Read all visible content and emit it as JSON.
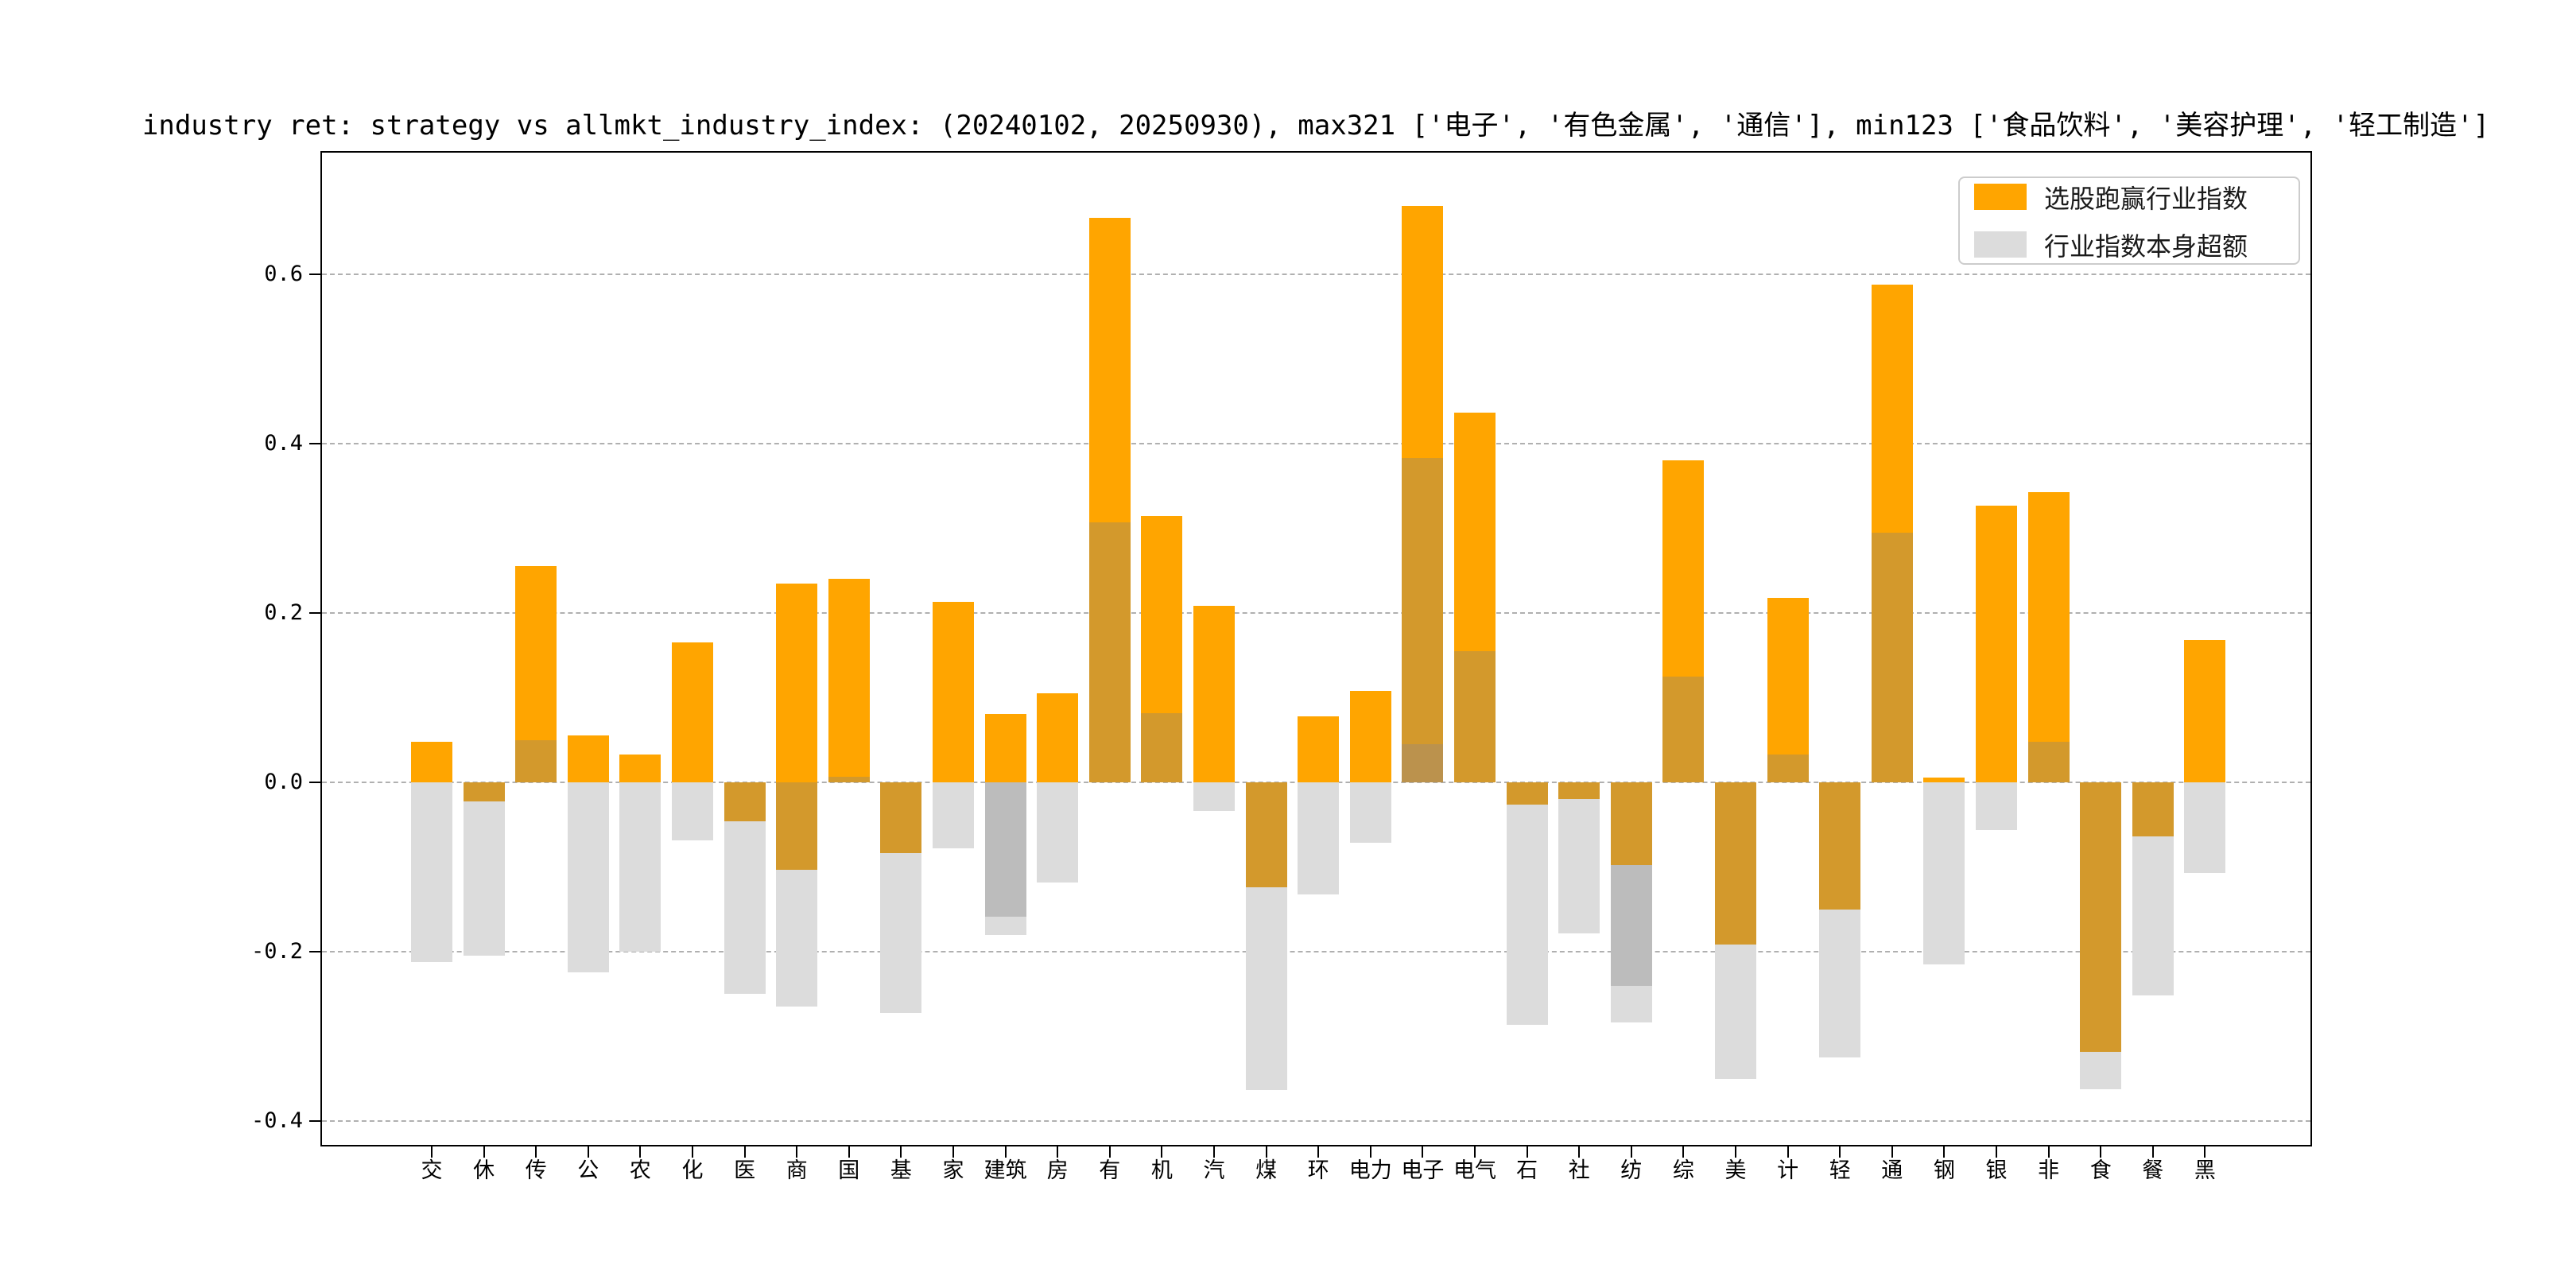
{
  "title": "industry ret: strategy vs allmkt_industry_index: (20240102, 20250930), max321 ['电子', '有色金属', '通信'], min123 ['食品饮料', '美容护理', '轻工制造']",
  "legend": {
    "items": [
      {
        "label": "选股跑赢行业指数",
        "color": "#FFA500"
      },
      {
        "label": "行业指数本身超额",
        "color": "#DCDCDC"
      }
    ]
  },
  "y_axis": {
    "tick_labels": [
      "0.6",
      "0.4",
      "0.2",
      "0.0",
      "-0.2",
      "-0.4"
    ],
    "values": [
      0.6,
      0.4,
      0.2,
      0.0,
      -0.2,
      -0.4
    ]
  },
  "chart_data": {
    "type": "bar",
    "title": "industry ret: strategy vs allmkt_industry_index: (20240102, 20250930), max321 ['电子', '有色金属', '通信'], min123 ['食品饮料', '美容护理', '轻工制造']",
    "xlabel": "",
    "ylabel": "",
    "ylim": [
      -0.43,
      0.745
    ],
    "grid": "horizontal dashed",
    "legend_position": "upper right",
    "categories": [
      "交",
      "休",
      "传",
      "公",
      "农",
      "化",
      "医",
      "商",
      "国",
      "基",
      "家",
      "建筑",
      "房",
      "有",
      "机",
      "汽",
      "煤",
      "环",
      "电力",
      "电子",
      "电气",
      "石",
      "社",
      "纺",
      "综",
      "美",
      "计",
      "轻",
      "通",
      "钢",
      "银",
      "非",
      "食",
      "餐",
      "黑"
    ],
    "series": [
      {
        "name": "选股跑赢行业指数",
        "color": "#FFA500",
        "values": [
          0.048,
          -0.023,
          0.255,
          0.055,
          0.033,
          0.165,
          -0.046,
          0.235,
          0.24,
          -0.084,
          0.213,
          0.081,
          0.105,
          0.667,
          0.315,
          0.208,
          -0.124,
          0.078,
          0.108,
          0.681,
          0.437,
          -0.026,
          -0.02,
          -0.098,
          0.38,
          -0.192,
          0.218,
          -0.15,
          0.588,
          0.006,
          0.327,
          0.343,
          -0.318,
          -0.064,
          0.168
        ]
      },
      {
        "name": "行业指数本身超额",
        "color": "#DCDCDC",
        "values": [
          -0.212,
          -0.205,
          0.05,
          -0.224,
          -0.2,
          -0.069,
          -0.25,
          -0.265,
          0.007,
          -0.272,
          -0.078,
          -0.18,
          -0.118,
          0.307,
          0.082,
          -0.034,
          -0.363,
          -0.132,
          -0.071,
          0.383,
          0.155,
          -0.286,
          -0.178,
          -0.284,
          0.125,
          -0.35,
          0.033,
          -0.325,
          0.295,
          -0.215,
          -0.056,
          0.048,
          -0.362,
          -0.252,
          -0.107
        ]
      }
    ],
    "segment_colors": {
      "o": "#FFA500",
      "m": "#D3992C",
      "md": "#BB924D",
      "g": "#DCDCDC",
      "gd": "#BCBCBC"
    },
    "bars": [
      {
        "label": "交",
        "segments": [
          [
            0,
            0.048,
            "o"
          ],
          [
            0,
            -0.212,
            "g"
          ]
        ]
      },
      {
        "label": "休",
        "segments": [
          [
            0,
            -0.023,
            "m"
          ],
          [
            -0.023,
            -0.205,
            "g"
          ]
        ]
      },
      {
        "label": "传",
        "segments": [
          [
            0.05,
            0.255,
            "o"
          ],
          [
            0,
            0.05,
            "m"
          ]
        ]
      },
      {
        "label": "公",
        "segments": [
          [
            0,
            0.055,
            "o"
          ],
          [
            0,
            -0.224,
            "g"
          ]
        ]
      },
      {
        "label": "农",
        "segments": [
          [
            0,
            0.033,
            "o"
          ],
          [
            0,
            -0.2,
            "g"
          ]
        ]
      },
      {
        "label": "化",
        "segments": [
          [
            0,
            0.165,
            "o"
          ],
          [
            0,
            -0.069,
            "g"
          ]
        ]
      },
      {
        "label": "医",
        "segments": [
          [
            0,
            -0.046,
            "m"
          ],
          [
            -0.046,
            -0.25,
            "g"
          ]
        ]
      },
      {
        "label": "商",
        "segments": [
          [
            0,
            0.235,
            "o"
          ],
          [
            0,
            -0.103,
            "m"
          ],
          [
            -0.103,
            -0.265,
            "g"
          ]
        ]
      },
      {
        "label": "国",
        "segments": [
          [
            0.007,
            0.24,
            "o"
          ],
          [
            0,
            0.007,
            "m"
          ]
        ]
      },
      {
        "label": "基",
        "segments": [
          [
            0,
            -0.084,
            "m"
          ],
          [
            -0.084,
            -0.272,
            "g"
          ]
        ]
      },
      {
        "label": "家",
        "segments": [
          [
            0,
            0.213,
            "o"
          ],
          [
            0,
            -0.078,
            "g"
          ]
        ]
      },
      {
        "label": "建筑",
        "segments": [
          [
            0,
            0.081,
            "o"
          ],
          [
            0,
            -0.159,
            "gd"
          ],
          [
            -0.159,
            -0.18,
            "g"
          ]
        ]
      },
      {
        "label": "房",
        "segments": [
          [
            0,
            0.105,
            "o"
          ],
          [
            0,
            -0.118,
            "g"
          ]
        ]
      },
      {
        "label": "有",
        "segments": [
          [
            0.307,
            0.667,
            "o"
          ],
          [
            0,
            0.307,
            "m"
          ]
        ]
      },
      {
        "label": "机",
        "segments": [
          [
            0.082,
            0.315,
            "o"
          ],
          [
            0,
            0.082,
            "m"
          ]
        ]
      },
      {
        "label": "汽",
        "segments": [
          [
            0,
            0.208,
            "o"
          ],
          [
            0,
            -0.034,
            "g"
          ]
        ]
      },
      {
        "label": "煤",
        "segments": [
          [
            0,
            -0.124,
            "m"
          ],
          [
            -0.124,
            -0.363,
            "g"
          ]
        ]
      },
      {
        "label": "环",
        "segments": [
          [
            0,
            0.078,
            "o"
          ],
          [
            0,
            -0.132,
            "g"
          ]
        ]
      },
      {
        "label": "电力",
        "segments": [
          [
            0,
            0.108,
            "o"
          ],
          [
            0,
            -0.071,
            "g"
          ]
        ]
      },
      {
        "label": "电子",
        "segments": [
          [
            0.383,
            0.681,
            "o"
          ],
          [
            0.045,
            0.383,
            "m"
          ],
          [
            0,
            0.045,
            "md"
          ]
        ]
      },
      {
        "label": "电气",
        "segments": [
          [
            0.155,
            0.437,
            "o"
          ],
          [
            0,
            0.155,
            "m"
          ]
        ]
      },
      {
        "label": "石",
        "segments": [
          [
            0,
            -0.026,
            "m"
          ],
          [
            -0.026,
            -0.286,
            "g"
          ]
        ]
      },
      {
        "label": "社",
        "segments": [
          [
            0,
            -0.02,
            "m"
          ],
          [
            -0.02,
            -0.178,
            "g"
          ]
        ]
      },
      {
        "label": "纺",
        "segments": [
          [
            0,
            -0.098,
            "m"
          ],
          [
            -0.098,
            -0.24,
            "gd"
          ],
          [
            -0.24,
            -0.284,
            "g"
          ]
        ]
      },
      {
        "label": "综",
        "segments": [
          [
            0.125,
            0.38,
            "o"
          ],
          [
            0,
            0.125,
            "m"
          ]
        ]
      },
      {
        "label": "美",
        "segments": [
          [
            0,
            -0.192,
            "m"
          ],
          [
            -0.192,
            -0.35,
            "g"
          ]
        ]
      },
      {
        "label": "计",
        "segments": [
          [
            0.033,
            0.218,
            "o"
          ],
          [
            0,
            0.033,
            "m"
          ]
        ]
      },
      {
        "label": "轻",
        "segments": [
          [
            0,
            -0.15,
            "m"
          ],
          [
            -0.15,
            -0.325,
            "g"
          ]
        ]
      },
      {
        "label": "通",
        "segments": [
          [
            0.295,
            0.588,
            "o"
          ],
          [
            0,
            0.295,
            "m"
          ]
        ]
      },
      {
        "label": "钢",
        "segments": [
          [
            0,
            0.006,
            "o"
          ],
          [
            0,
            -0.215,
            "g"
          ]
        ]
      },
      {
        "label": "银",
        "segments": [
          [
            0,
            0.327,
            "o"
          ],
          [
            0,
            -0.056,
            "g"
          ]
        ]
      },
      {
        "label": "非",
        "segments": [
          [
            0.048,
            0.343,
            "o"
          ],
          [
            0,
            0.048,
            "m"
          ]
        ]
      },
      {
        "label": "食",
        "segments": [
          [
            0,
            -0.318,
            "m"
          ],
          [
            -0.318,
            -0.362,
            "g"
          ]
        ]
      },
      {
        "label": "餐",
        "segments": [
          [
            0,
            -0.064,
            "m"
          ],
          [
            -0.064,
            -0.252,
            "g"
          ]
        ]
      },
      {
        "label": "黑",
        "segments": [
          [
            0,
            0.168,
            "o"
          ],
          [
            0,
            -0.107,
            "g"
          ]
        ]
      }
    ]
  }
}
